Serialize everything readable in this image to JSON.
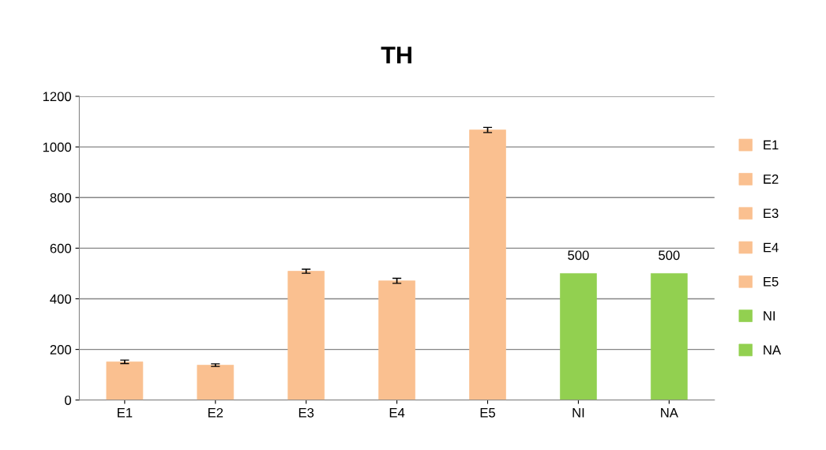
{
  "chart_data": {
    "type": "bar",
    "title": "TH",
    "categories": [
      "E1",
      "E2",
      "E3",
      "E4",
      "E5",
      "NI",
      "NA"
    ],
    "stacked": true,
    "series": [
      {
        "name": "E1",
        "color": "#fac090",
        "values": [
          151,
          null,
          null,
          null,
          null,
          null,
          null
        ],
        "errors": [
          7,
          null,
          null,
          null,
          null,
          null,
          null
        ]
      },
      {
        "name": "E2",
        "color": "#fac090",
        "values": [
          null,
          138,
          null,
          null,
          null,
          null,
          null
        ],
        "errors": [
          null,
          5,
          null,
          null,
          null,
          null,
          null
        ]
      },
      {
        "name": "E3",
        "color": "#fac090",
        "values": [
          null,
          null,
          509,
          null,
          null,
          null,
          null
        ],
        "errors": [
          null,
          null,
          8,
          null,
          null,
          null,
          null
        ]
      },
      {
        "name": "E4",
        "color": "#fac090",
        "values": [
          null,
          null,
          null,
          471,
          null,
          null,
          null
        ],
        "errors": [
          null,
          null,
          null,
          10,
          null,
          null,
          null
        ]
      },
      {
        "name": "E5",
        "color": "#fac090",
        "values": [
          null,
          null,
          null,
          null,
          1067,
          null,
          null
        ],
        "errors": [
          null,
          null,
          null,
          null,
          10,
          null,
          null
        ]
      },
      {
        "name": "NI",
        "color": "#92d050",
        "values": [
          null,
          null,
          null,
          null,
          null,
          500,
          null
        ],
        "value_labels": [
          null,
          null,
          null,
          null,
          null,
          "500",
          null
        ]
      },
      {
        "name": "NA",
        "color": "#92d050",
        "values": [
          null,
          null,
          null,
          null,
          null,
          null,
          500
        ],
        "value_labels": [
          null,
          null,
          null,
          null,
          null,
          null,
          "500"
        ]
      }
    ],
    "ylim": [
      0,
      1200
    ],
    "yticks": [
      0,
      200,
      400,
      600,
      800,
      1000,
      1200
    ],
    "grid": "y",
    "legend": "right"
  }
}
